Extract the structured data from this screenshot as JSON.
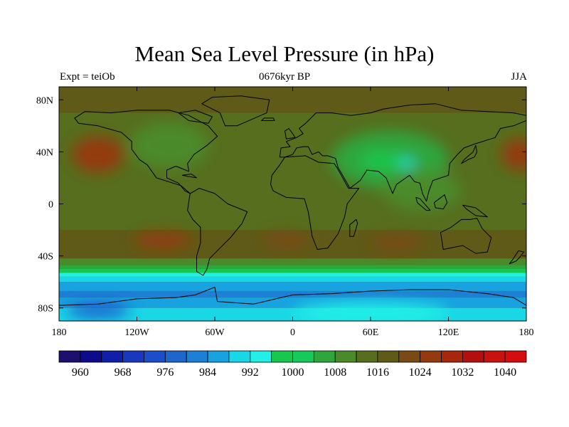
{
  "title": "Mean Sea Level Pressure (in hPa)",
  "subtitle_left": "Expt = teiOb",
  "subtitle_center": "0676kyr BP",
  "subtitle_right": "JJA",
  "units": "hPa",
  "lat_ticks": [
    {
      "value": 80,
      "label": "80N"
    },
    {
      "value": 40,
      "label": "40N"
    },
    {
      "value": 0,
      "label": "0"
    },
    {
      "value": -40,
      "label": "40S"
    },
    {
      "value": -80,
      "label": "80S"
    }
  ],
  "lon_ticks": [
    {
      "value": -180,
      "label": "180"
    },
    {
      "value": -120,
      "label": "120W"
    },
    {
      "value": -60,
      "label": "60W"
    },
    {
      "value": 0,
      "label": "0"
    },
    {
      "value": 60,
      "label": "60E"
    },
    {
      "value": 120,
      "label": "120E"
    },
    {
      "value": 180,
      "label": "180"
    }
  ],
  "colorbar": {
    "levels": [
      956,
      960,
      964,
      968,
      972,
      976,
      980,
      984,
      988,
      992,
      996,
      1000,
      1004,
      1008,
      1012,
      1016,
      1020,
      1024,
      1028,
      1032,
      1036,
      1040
    ],
    "labels": [
      "960",
      "968",
      "976",
      "984",
      "992",
      "1000",
      "1008",
      "1016",
      "1024",
      "1032",
      "1040"
    ],
    "label_levels": [
      960,
      968,
      976,
      984,
      992,
      1000,
      1008,
      1016,
      1024,
      1032,
      1040
    ],
    "colors": [
      "#1c0f6e",
      "#0c0b8c",
      "#0f1fa8",
      "#1a38bd",
      "#1c4ec9",
      "#1e66cc",
      "#1f7fd4",
      "#18a2e0",
      "#1ad7e6",
      "#22f0e6",
      "#18c84e",
      "#17c85a",
      "#2fa63c",
      "#4b8a2a",
      "#566e1e",
      "#5f5a18",
      "#7a4a14",
      "#943a10",
      "#a8250e",
      "#b2100e",
      "#c8120e",
      "#d40e0e"
    ]
  },
  "regions": [
    {
      "name": "north-pacific-high",
      "lon": -150,
      "lat": 38,
      "rlon": 20,
      "rlat": 14,
      "value": 1026
    },
    {
      "name": "west-pacific-high",
      "lon": 175,
      "lat": 38,
      "rlon": 14,
      "rlat": 12,
      "value": 1026
    },
    {
      "name": "south-pacific-high",
      "lon": -100,
      "lat": -28,
      "rlon": 22,
      "rlat": 6,
      "value": 1024
    },
    {
      "name": "south-atlantic-high",
      "lon": -5,
      "lat": -28,
      "rlon": 18,
      "rlat": 6,
      "value": 1022
    },
    {
      "name": "indian-ocean-high",
      "lon": 80,
      "lat": -30,
      "rlon": 20,
      "rlat": 6,
      "value": 1022
    },
    {
      "name": "asian-low",
      "lon": 75,
      "lat": 34,
      "rlon": 45,
      "rlat": 22,
      "value": 1006
    },
    {
      "name": "asian-low-core",
      "lon": 70,
      "lat": 33,
      "rlon": 18,
      "rlat": 7,
      "value": 998
    },
    {
      "name": "asian-low-center",
      "lon": 88,
      "lat": 31,
      "rlon": 6,
      "rlat": 3,
      "value": 992
    },
    {
      "name": "north-america-low",
      "lon": -95,
      "lat": 45,
      "rlon": 30,
      "rlat": 18,
      "value": 1008
    },
    {
      "name": "south-asia-trough",
      "lon": 100,
      "lat": 10,
      "rlon": 30,
      "rlat": 15,
      "value": 1008
    },
    {
      "name": "antarctic-low",
      "lon": 60,
      "lat": -84,
      "rlon": 60,
      "rlat": 8,
      "value": 994
    },
    {
      "name": "weddell-low",
      "lon": -150,
      "lat": -82,
      "rlon": 25,
      "rlat": 5,
      "value": 972
    }
  ]
}
